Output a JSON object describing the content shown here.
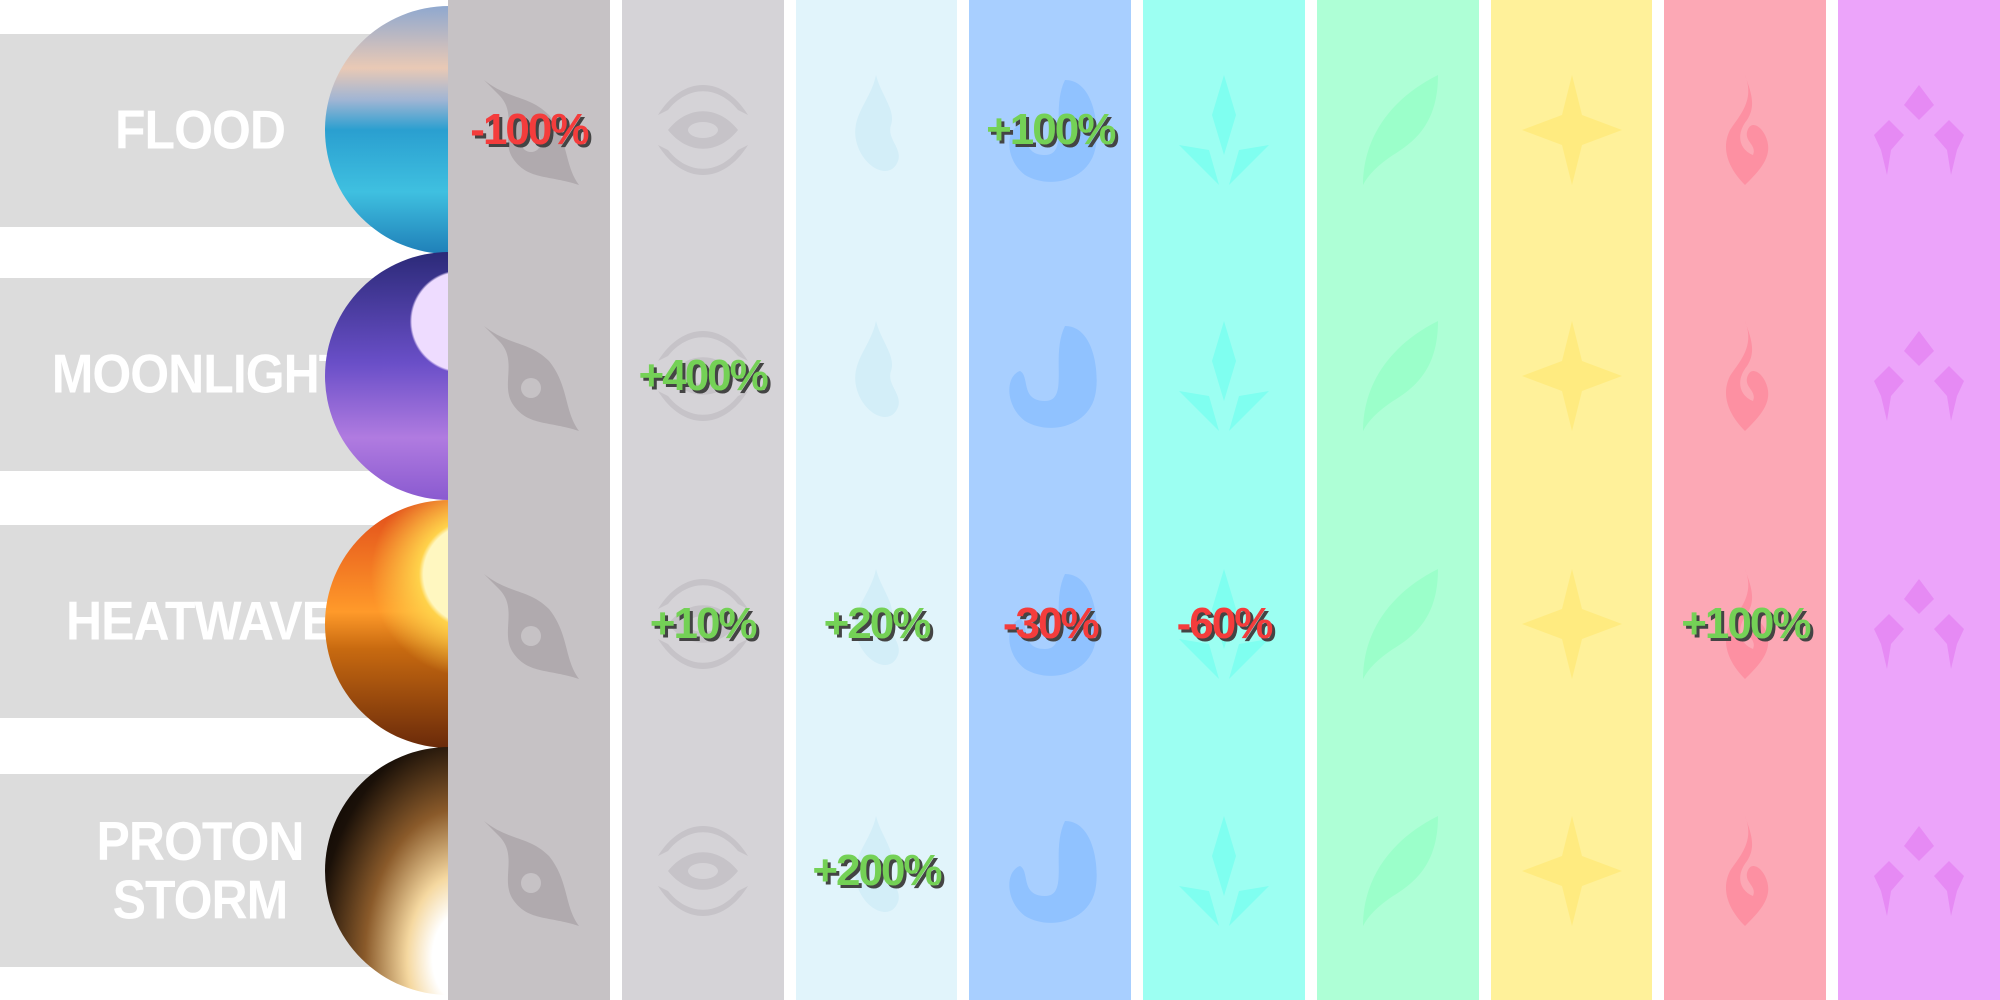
{
  "rows": [
    {
      "label": "FLOOD",
      "image": "flood-scene"
    },
    {
      "label": "MOONLIGHT",
      "image": "moonlight-scene"
    },
    {
      "label": "HEATWAVE",
      "image": "heatwave-scene"
    },
    {
      "label": "PROTON STORM",
      "image": "proton-storm-scene"
    }
  ],
  "columns": [
    {
      "icon": "swirl-icon",
      "color": "#c6c2c5",
      "icon_color": "#b0aaae"
    },
    {
      "icon": "eye-icon",
      "color": "#d5d3d7",
      "icon_color": "#c6c3c8"
    },
    {
      "icon": "flame-icon",
      "color": "#e1f4fb",
      "icon_color": "#d3eef8"
    },
    {
      "icon": "water-drop-icon",
      "color": "#a8cfff",
      "icon_color": "#90c2ff"
    },
    {
      "icon": "crystal-icon",
      "color": "#9cfff2",
      "icon_color": "#7ffff0"
    },
    {
      "icon": "leaf-icon",
      "color": "#aeffd6",
      "icon_color": "#9bffca"
    },
    {
      "icon": "star-icon",
      "color": "#fff19a",
      "icon_color": "#ffeb80"
    },
    {
      "icon": "fire-icon",
      "color": "#fca8b5",
      "icon_color": "#fd90a2"
    },
    {
      "icon": "triple-eye-icon",
      "color": "#eca4fa",
      "icon_color": "#e68af4"
    }
  ],
  "values": [
    [
      "-100%",
      "",
      "",
      "+100%",
      "",
      "",
      "",
      "",
      ""
    ],
    [
      "",
      "+400%",
      "",
      "",
      "",
      "",
      "",
      "",
      ""
    ],
    [
      "",
      "+10%",
      "+20%",
      "-30%",
      "-60%",
      "",
      "",
      "+100%",
      ""
    ],
    [
      "",
      "",
      "+200%",
      "",
      "",
      "",
      "",
      "",
      ""
    ]
  ],
  "colors": {
    "negative": "#f43c3c",
    "positive": "#74d156"
  }
}
